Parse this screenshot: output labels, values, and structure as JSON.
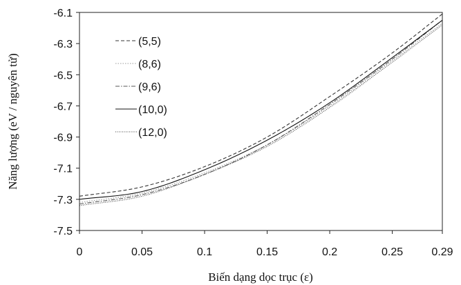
{
  "chart_data": {
    "type": "line",
    "title": "",
    "xlabel": "Biến dạng dọc trục (ε)",
    "ylabel": "Năng lượng (eV / nguyên tử)",
    "xlim": [
      0,
      0.29
    ],
    "ylim": [
      -7.5,
      -6.1
    ],
    "x_ticks": [
      0,
      0.05,
      0.1,
      0.15,
      0.2,
      0.25,
      0.29
    ],
    "x_tick_labels": [
      "0",
      "0.05",
      "0.1",
      "0.15",
      "0.2",
      "0.25",
      "0.29"
    ],
    "y_ticks": [
      -7.5,
      -7.3,
      -7.1,
      -6.9,
      -6.7,
      -6.5,
      -6.3,
      -6.1
    ],
    "y_tick_labels": [
      "-7.5",
      "-7.3",
      "-7.1",
      "-6.9",
      "-6.7",
      "-6.5",
      "-6.3",
      "-6.1"
    ],
    "grid": false,
    "legend_position": "top-left",
    "series": [
      {
        "name": "(5,5)",
        "style": "dashed",
        "color": "#333333",
        "x": [
          0,
          0.05,
          0.1,
          0.15,
          0.2,
          0.25,
          0.29
        ],
        "y": [
          -7.28,
          -7.22,
          -7.09,
          -6.9,
          -6.64,
          -6.36,
          -6.11
        ]
      },
      {
        "name": "(8,6)",
        "style": "dotted",
        "color": "#999999",
        "x": [
          0,
          0.05,
          0.1,
          0.15,
          0.2,
          0.25,
          0.29
        ],
        "y": [
          -7.32,
          -7.26,
          -7.13,
          -6.95,
          -6.7,
          -6.41,
          -6.17
        ]
      },
      {
        "name": "(9,6)",
        "style": "dashdot",
        "color": "#555555",
        "x": [
          0,
          0.05,
          0.1,
          0.15,
          0.2,
          0.25,
          0.29
        ],
        "y": [
          -7.33,
          -7.27,
          -7.14,
          -6.95,
          -6.69,
          -6.4,
          -6.15
        ]
      },
      {
        "name": "(10,0)",
        "style": "solid",
        "color": "#111111",
        "x": [
          0,
          0.05,
          0.1,
          0.15,
          0.2,
          0.25,
          0.29
        ],
        "y": [
          -7.3,
          -7.25,
          -7.11,
          -6.92,
          -6.68,
          -6.39,
          -6.15
        ]
      },
      {
        "name": "(12,0)",
        "style": "densedot",
        "color": "#444444",
        "x": [
          0,
          0.05,
          0.1,
          0.15,
          0.2,
          0.25,
          0.29
        ],
        "y": [
          -7.34,
          -7.28,
          -7.14,
          -6.96,
          -6.71,
          -6.42,
          -6.18
        ]
      }
    ]
  }
}
